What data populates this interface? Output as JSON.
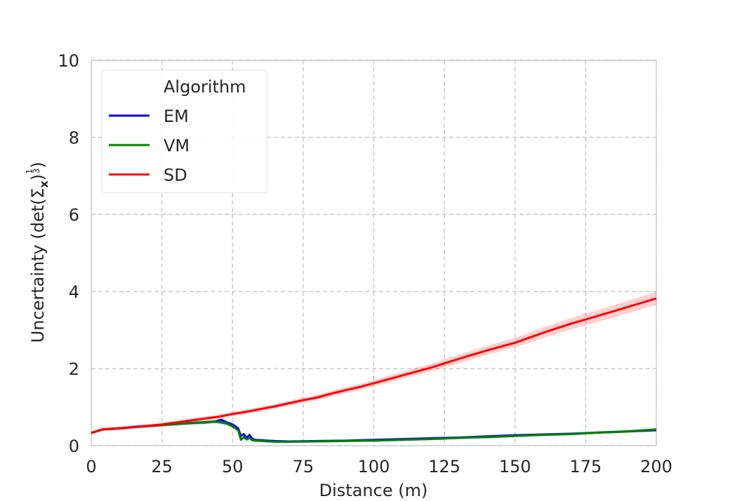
{
  "chart_data": {
    "type": "line",
    "title": "",
    "xlabel": "Distance (m)",
    "ylabel_parts": {
      "prefix": "Uncertainty (det(Σ",
      "subscript": "x",
      "suffix": ")",
      "exp_num": "1",
      "exp_den": "3",
      "close": ")"
    },
    "xlim": [
      0,
      200
    ],
    "ylim": [
      0,
      10
    ],
    "xticks": [
      "0",
      "25",
      "50",
      "75",
      "100",
      "125",
      "150",
      "175",
      "200"
    ],
    "yticks": [
      "0",
      "2",
      "4",
      "6",
      "8",
      "10"
    ],
    "grid": true,
    "legend": {
      "title": "Algorithm",
      "placement": "top-left"
    },
    "series": [
      {
        "name": "EM",
        "color": "#0000ff",
        "x": [
          0,
          4,
          8,
          12,
          16,
          20,
          24,
          28,
          32,
          36,
          40,
          44,
          46,
          48,
          50,
          52,
          53,
          54,
          55,
          56,
          57,
          58,
          60,
          65,
          70,
          80,
          90,
          100,
          110,
          120,
          130,
          140,
          150,
          160,
          170,
          180,
          190,
          200
        ],
        "y": [
          0.33,
          0.42,
          0.44,
          0.46,
          0.49,
          0.51,
          0.53,
          0.55,
          0.57,
          0.59,
          0.6,
          0.63,
          0.67,
          0.6,
          0.55,
          0.45,
          0.25,
          0.3,
          0.2,
          0.28,
          0.18,
          0.15,
          0.14,
          0.12,
          0.11,
          0.12,
          0.13,
          0.15,
          0.17,
          0.19,
          0.21,
          0.24,
          0.27,
          0.29,
          0.31,
          0.34,
          0.37,
          0.4
        ]
      },
      {
        "name": "VM",
        "color": "#008000",
        "x": [
          0,
          4,
          8,
          12,
          16,
          20,
          24,
          28,
          32,
          36,
          40,
          44,
          46,
          48,
          50,
          52,
          53,
          54,
          55,
          56,
          57,
          58,
          60,
          65,
          70,
          80,
          90,
          100,
          110,
          120,
          130,
          140,
          150,
          160,
          170,
          180,
          190,
          200
        ],
        "y": [
          0.33,
          0.42,
          0.44,
          0.46,
          0.49,
          0.51,
          0.53,
          0.55,
          0.57,
          0.59,
          0.61,
          0.62,
          0.6,
          0.57,
          0.5,
          0.4,
          0.15,
          0.22,
          0.16,
          0.2,
          0.14,
          0.13,
          0.12,
          0.1,
          0.1,
          0.11,
          0.12,
          0.13,
          0.15,
          0.17,
          0.2,
          0.22,
          0.25,
          0.28,
          0.3,
          0.34,
          0.37,
          0.42
        ]
      },
      {
        "name": "SD",
        "color": "#ff0000",
        "x": [
          0,
          4,
          8,
          12,
          16,
          20,
          25,
          30,
          35,
          40,
          45,
          50,
          55,
          60,
          65,
          70,
          75,
          80,
          85,
          90,
          95,
          100,
          110,
          120,
          130,
          140,
          150,
          160,
          170,
          180,
          190,
          200
        ],
        "y": [
          0.33,
          0.42,
          0.44,
          0.46,
          0.49,
          0.51,
          0.55,
          0.6,
          0.65,
          0.7,
          0.75,
          0.82,
          0.88,
          0.95,
          1.02,
          1.1,
          1.18,
          1.25,
          1.35,
          1.44,
          1.52,
          1.62,
          1.82,
          2.02,
          2.25,
          2.47,
          2.67,
          2.93,
          3.17,
          3.38,
          3.6,
          3.82
        ]
      }
    ]
  }
}
